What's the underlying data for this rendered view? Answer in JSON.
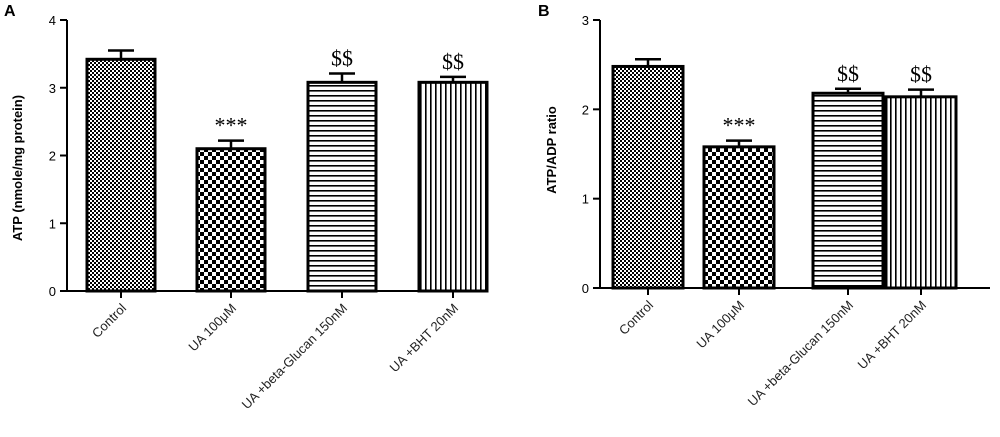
{
  "chart_data": [
    {
      "type": "bar",
      "panel": "A",
      "categories": [
        "Control",
        "UA 100μM",
        "UA +beta-Glucan 150nM",
        "UA +BHT 20nM"
      ],
      "values": [
        3.42,
        2.1,
        3.08,
        3.08
      ],
      "errors": [
        0.13,
        0.12,
        0.13,
        0.08
      ],
      "annotations": [
        "",
        "***",
        "$$",
        "$$"
      ],
      "patterns": [
        "dense-check",
        "check",
        "horizontal-lines",
        "vertical-lines"
      ],
      "xlabel": "",
      "ylabel": "ATP (nmole/mg protein)",
      "ylim": [
        0,
        4
      ],
      "yticks": [
        0,
        1,
        2,
        3,
        4
      ],
      "grid": false
    },
    {
      "type": "bar",
      "panel": "B",
      "categories": [
        "Control",
        "UA 100μM",
        "UA +beta-Glucan 150nM",
        "UA +BHT 20nM"
      ],
      "values": [
        2.48,
        1.58,
        2.18,
        2.14
      ],
      "errors": [
        0.08,
        0.07,
        0.05,
        0.08
      ],
      "annotations": [
        "",
        "***",
        "$$",
        "$$"
      ],
      "patterns": [
        "dense-check",
        "check",
        "horizontal-lines",
        "vertical-lines"
      ],
      "xlabel": "",
      "ylabel": "ATP/ADP ratio",
      "ylim": [
        0,
        3
      ],
      "yticks": [
        0,
        1,
        2,
        3
      ],
      "grid": false
    }
  ],
  "colors": {
    "ink": "#000000",
    "background": "#ffffff"
  }
}
